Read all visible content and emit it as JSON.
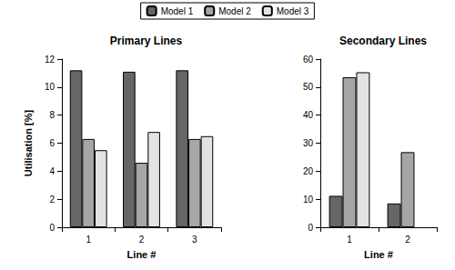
{
  "chart_data": [
    {
      "type": "bar",
      "title": "Primary Lines",
      "x_label": "Line #",
      "y_label": "Utilisation [%]",
      "categories": [
        "1",
        "2",
        "3"
      ],
      "series": [
        {
          "name": "Model 1",
          "color": "#666666",
          "values": [
            11.2,
            11.1,
            11.2
          ]
        },
        {
          "name": "Model 2",
          "color": "#a6a6a6",
          "values": [
            6.3,
            4.6,
            6.3
          ]
        },
        {
          "name": "Model 3",
          "color": "#e3e3e3",
          "values": [
            5.5,
            6.8,
            6.5
          ]
        }
      ],
      "ylim": [
        0,
        12
      ],
      "yticks": [
        0,
        2,
        4,
        6,
        8,
        10,
        12
      ],
      "grid": false,
      "legend": "top"
    },
    {
      "type": "bar",
      "title": "Secondary Lines",
      "x_label": "Line #",
      "categories": [
        "1",
        "2"
      ],
      "series": [
        {
          "name": "Model 1",
          "color": "#666666",
          "values": [
            11.2,
            8.5
          ]
        },
        {
          "name": "Model 2",
          "color": "#a6a6a6",
          "values": [
            53.5,
            26.8
          ]
        },
        {
          "name": "Model 3",
          "color": "#e3e3e3",
          "values": [
            55.3,
            null
          ]
        }
      ],
      "ylim": [
        0,
        60
      ],
      "yticks": [
        0,
        10,
        20,
        30,
        40,
        50,
        60
      ],
      "grid": false
    }
  ]
}
